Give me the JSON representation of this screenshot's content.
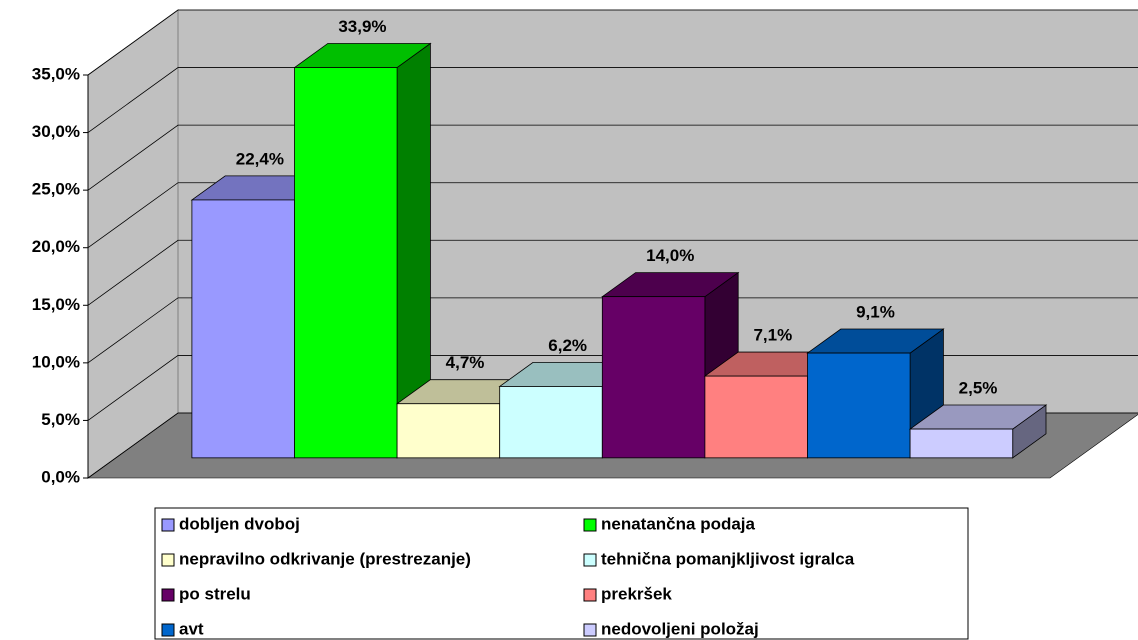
{
  "chart_data": {
    "type": "bar3d",
    "series": [
      {
        "name": "dobljen dvoboj",
        "color": "#9999ff",
        "values": [
          22.4
        ],
        "value_labels": [
          "22,4%"
        ]
      },
      {
        "name": "nenatančna podaja",
        "color": "#00ff00",
        "values": [
          33.9
        ],
        "value_labels": [
          "33,9%"
        ]
      },
      {
        "name": "nepravilno odkrivanje (prestrezanje)",
        "color": "#ffffcc",
        "values": [
          4.7
        ],
        "value_labels": [
          "4,7%"
        ]
      },
      {
        "name": "tehnična pomanjkljivost igralca",
        "color": "#ccffff",
        "values": [
          6.2
        ],
        "value_labels": [
          "6,2%"
        ]
      },
      {
        "name": "po strelu",
        "color": "#660066",
        "values": [
          14.0
        ],
        "value_labels": [
          "14,0%"
        ]
      },
      {
        "name": "prekršek",
        "color": "#ff8080",
        "values": [
          7.1
        ],
        "value_labels": [
          "7,1%"
        ]
      },
      {
        "name": "avt",
        "color": "#0066cc",
        "values": [
          9.1
        ],
        "value_labels": [
          "9,1%"
        ]
      },
      {
        "name": "nedovoljeni položaj",
        "color": "#ccccff",
        "values": [
          2.5
        ],
        "value_labels": [
          "2,5%"
        ]
      }
    ],
    "ylim": [
      0,
      35
    ],
    "yticks": [
      {
        "value": 0,
        "label": "0,0%"
      },
      {
        "value": 5,
        "label": "5,0%"
      },
      {
        "value": 10,
        "label": "10,0%"
      },
      {
        "value": 15,
        "label": "15,0%"
      },
      {
        "value": 20,
        "label": "20,0%"
      },
      {
        "value": 25,
        "label": "25,0%"
      },
      {
        "value": 30,
        "label": "30,0%"
      },
      {
        "value": 35,
        "label": "35,0%"
      }
    ],
    "grid": true,
    "legend": "bottom"
  }
}
